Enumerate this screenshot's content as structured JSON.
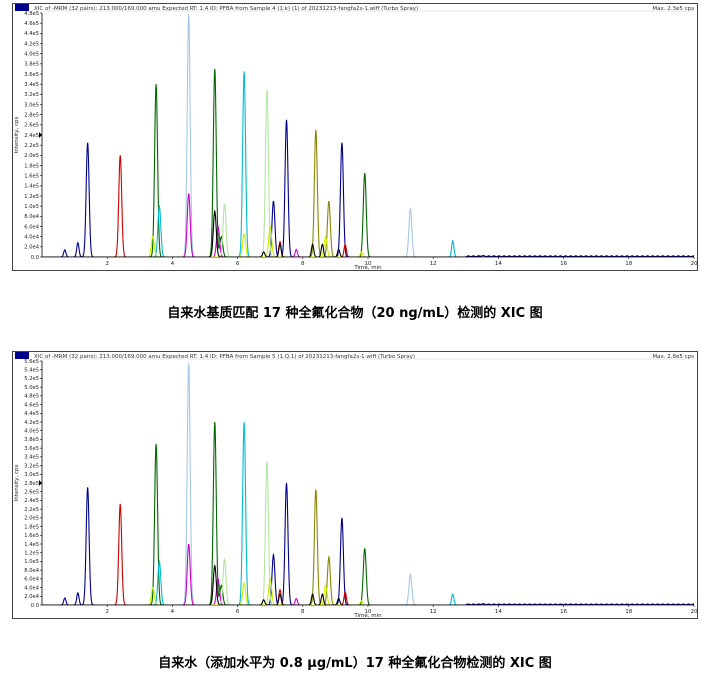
{
  "chart_data": [
    {
      "type": "line",
      "header_left": "XIC of -MRM (32 pairs): 213.000/169.000 amu Expected RT: 1.4 ID: PFBA from Sample 4 (1.k) (1) of 20231213-fangfa2s-1.wiff (Turbo Spray)",
      "header_right": "Max. 2.3e5 cps",
      "ylabel": "Intensity, cps",
      "xlabel": "Time, min",
      "xlim": [
        0,
        20
      ],
      "ylim": [
        0,
        480000
      ],
      "x_ticks": [
        "2",
        "4",
        "6",
        "8",
        "10",
        "12",
        "14",
        "16",
        "18",
        "20"
      ],
      "y_ticks": [
        "0.0",
        "2.0e4",
        "4.0e4",
        "6.0e4",
        "8.0e4",
        "1.0e5",
        "1.2e5",
        "1.4e5",
        "1.6e5",
        "1.8e5",
        "2.0e5",
        "2.2e5",
        "2.4e5",
        "2.6e5",
        "2.8e5",
        "3.0e5",
        "3.2e5",
        "3.4e5",
        "3.6e5",
        "3.8e5",
        "4.0e5",
        "4.2e5",
        "4.4e5",
        "4.6e5",
        "4.8e5"
      ],
      "series": [
        {
          "color": "#00008b",
          "peaks": [
            [
              0.7,
              14000
            ],
            [
              1.4,
              225000
            ],
            [
              1.1,
              28000
            ],
            [
              7.5,
              270000
            ],
            [
              7.1,
              110000
            ],
            [
              9.2,
              225000
            ],
            [
              13.5,
              1000
            ]
          ]
        },
        {
          "color": "#cc0000",
          "peaks": [
            [
              2.4,
              200000
            ],
            [
              7.3,
              30000
            ],
            [
              9.3,
              25000
            ]
          ]
        },
        {
          "color": "#006600",
          "peaks": [
            [
              3.5,
              340000
            ],
            [
              5.3,
              370000
            ],
            [
              9.9,
              165000
            ],
            [
              5.5,
              40000
            ]
          ]
        },
        {
          "color": "#00bcd4",
          "peaks": [
            [
              3.6,
              100000
            ],
            [
              6.2,
              365000
            ],
            [
              12.6,
              32000
            ]
          ]
        },
        {
          "color": "#a6c8e0",
          "peaks": [
            [
              4.5,
              478000
            ],
            [
              11.3,
              95000
            ]
          ]
        },
        {
          "color": "#cc00cc",
          "peaks": [
            [
              4.5,
              125000
            ],
            [
              5.4,
              60000
            ],
            [
              7.8,
              15000
            ]
          ]
        },
        {
          "color": "#b5e5a0",
          "peaks": [
            [
              5.6,
              105000
            ],
            [
              6.9,
              330000
            ]
          ]
        },
        {
          "color": "#888800",
          "peaks": [
            [
              8.4,
              250000
            ],
            [
              8.8,
              110000
            ]
          ]
        },
        {
          "color": "#ccee00",
          "peaks": [
            [
              3.4,
              40000
            ],
            [
              6.2,
              45000
            ],
            [
              7.0,
              60000
            ],
            [
              8.7,
              40000
            ],
            [
              9.8,
              10000
            ]
          ]
        },
        {
          "color": "#000000",
          "peaks": [
            [
              5.3,
              90000
            ],
            [
              6.8,
              10000
            ],
            [
              7.3,
              25000
            ],
            [
              8.3,
              25000
            ],
            [
              8.6,
              25000
            ],
            [
              9.1,
              15000
            ]
          ]
        }
      ],
      "caption": "自来水基质匹配 17 种全氟化合物（20 ng/mL）检测的 XIC 图"
    },
    {
      "type": "line",
      "header_left": "XIC of -MRM (32 pairs): 213.000/169.000 amu Expected RT: 1.4 ID: PFBA from Sample 5 (1.Q.1) of 20231213-fangfa2s-1.wiff (Turbo Spray)",
      "header_right": "Max. 2.8e5 cps",
      "ylabel": "Intensity, cps",
      "xlabel": "Time, min",
      "xlim": [
        0,
        20
      ],
      "ylim": [
        0,
        560000
      ],
      "x_ticks": [
        "2",
        "4",
        "6",
        "8",
        "10",
        "12",
        "14",
        "16",
        "18",
        "20"
      ],
      "y_ticks": [
        "0.0",
        "2.0e4",
        "4.0e4",
        "6.0e4",
        "8.0e4",
        "1.0e5",
        "1.2e5",
        "1.4e5",
        "1.6e5",
        "1.8e5",
        "2.0e5",
        "2.2e5",
        "2.4e5",
        "2.6e5",
        "2.8e5",
        "3.0e5",
        "3.2e5",
        "3.4e5",
        "3.6e5",
        "3.8e5",
        "4.0e5",
        "4.2e5",
        "4.4e5",
        "4.6e5",
        "4.8e5",
        "5.0e5",
        "5.2e5",
        "5.4e5",
        "5.6e5"
      ],
      "series": [
        {
          "color": "#00008b",
          "peaks": [
            [
              0.7,
              16000
            ],
            [
              1.4,
              270000
            ],
            [
              1.1,
              28000
            ],
            [
              7.5,
              280000
            ],
            [
              7.1,
              115000
            ],
            [
              9.2,
              200000
            ],
            [
              13.5,
              1000
            ]
          ]
        },
        {
          "color": "#cc0000",
          "peaks": [
            [
              2.4,
              232000
            ],
            [
              7.3,
              35000
            ],
            [
              9.3,
              30000
            ]
          ]
        },
        {
          "color": "#006600",
          "peaks": [
            [
              3.5,
              370000
            ],
            [
              5.3,
              420000
            ],
            [
              9.9,
              130000
            ],
            [
              5.5,
              45000
            ]
          ]
        },
        {
          "color": "#00bcd4",
          "peaks": [
            [
              3.6,
              100000
            ],
            [
              6.2,
              420000
            ],
            [
              12.6,
              25000
            ]
          ]
        },
        {
          "color": "#a6c8e0",
          "peaks": [
            [
              4.5,
              555000
            ],
            [
              11.3,
              70000
            ]
          ]
        },
        {
          "color": "#cc00cc",
          "peaks": [
            [
              4.5,
              140000
            ],
            [
              5.4,
              60000
            ],
            [
              7.8,
              15000
            ]
          ]
        },
        {
          "color": "#b5e5a0",
          "peaks": [
            [
              5.6,
              105000
            ],
            [
              6.9,
              330000
            ]
          ]
        },
        {
          "color": "#888800",
          "peaks": [
            [
              8.4,
              265000
            ],
            [
              8.8,
              110000
            ]
          ]
        },
        {
          "color": "#ccee00",
          "peaks": [
            [
              3.4,
              40000
            ],
            [
              6.2,
              50000
            ],
            [
              7.0,
              60000
            ],
            [
              8.7,
              45000
            ],
            [
              9.8,
              10000
            ]
          ]
        },
        {
          "color": "#000000",
          "peaks": [
            [
              5.3,
              90000
            ],
            [
              6.8,
              12000
            ],
            [
              7.3,
              25000
            ],
            [
              8.3,
              25000
            ],
            [
              8.6,
              25000
            ],
            [
              9.1,
              15000
            ]
          ]
        }
      ],
      "caption": "自来水（添加水平为 0.8 μg/mL）17 种全氟化合物检测的 XIC 图"
    }
  ]
}
